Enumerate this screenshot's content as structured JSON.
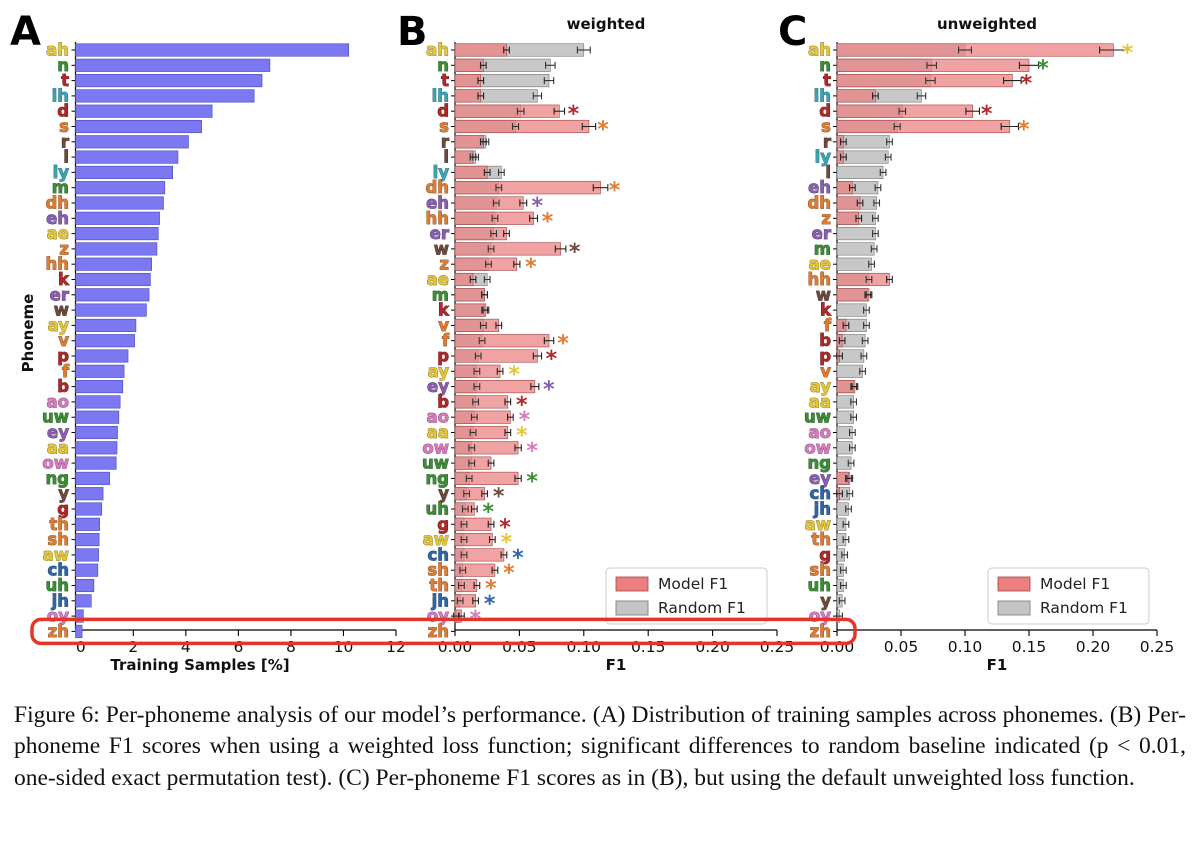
{
  "caption": "Figure 6: Per-phoneme analysis of our model’s performance. (A) Distribution of training samples across phonemes. (B) Per-phoneme F1 scores when using a weighted loss function; significant differences to random baseline indicated (p < 0.01, one-sided exact permutation test). (C) Per-phoneme F1 scores as in (B), but using the default unweighted loss function.",
  "colors": {
    "vowel_yellow": "#e5c638",
    "green": "#3c8d35",
    "red": "#b0282a",
    "teal": "#3aa6b5",
    "brown": "#6e4a3e",
    "orange": "#e07c32",
    "purple": "#8a5fb0",
    "pink": "#d87ac0",
    "blue": "#2f66a8",
    "blue_bar": "#7b78f2",
    "model_bar": "#ec8080",
    "random_bar": "#c5c5c5",
    "highlight": "#e5352b"
  },
  "chart_data": [
    {
      "type": "bar",
      "panel": "A",
      "orientation": "horizontal",
      "title": "",
      "xlabel": "Training Samples [%]",
      "ylabel": "Phoneme",
      "xlim": [
        -0.2,
        12
      ],
      "xticks": [
        "0",
        "2",
        "4",
        "6",
        "8",
        "10",
        "12"
      ],
      "categories": [
        "ah",
        "n",
        "t",
        "ih",
        "d",
        "s",
        "r",
        "l",
        "iy",
        "m",
        "dh",
        "eh",
        "ae",
        "z",
        "hh",
        "k",
        "er",
        "w",
        "ay",
        "v",
        "p",
        "f",
        "b",
        "ao",
        "uw",
        "ey",
        "aa",
        "ow",
        "ng",
        "y",
        "g",
        "th",
        "sh",
        "aw",
        "ch",
        "uh",
        "jh",
        "oy",
        "zh"
      ],
      "category_colors": [
        "vowel_yellow",
        "green",
        "red",
        "teal",
        "red",
        "orange",
        "brown",
        "brown",
        "teal",
        "green",
        "orange",
        "purple",
        "vowel_yellow",
        "orange",
        "orange",
        "red",
        "purple",
        "brown",
        "vowel_yellow",
        "orange",
        "red",
        "orange",
        "red",
        "pink",
        "green",
        "purple",
        "vowel_yellow",
        "pink",
        "green",
        "brown",
        "red",
        "orange",
        "orange",
        "vowel_yellow",
        "blue",
        "green",
        "blue",
        "pink",
        "orange"
      ],
      "values": [
        10.2,
        7.2,
        6.9,
        6.6,
        5.0,
        4.6,
        4.1,
        3.7,
        3.5,
        3.2,
        3.15,
        3.0,
        2.95,
        2.9,
        2.7,
        2.65,
        2.6,
        2.5,
        2.1,
        2.05,
        1.8,
        1.65,
        1.6,
        1.5,
        1.45,
        1.4,
        1.38,
        1.35,
        1.1,
        0.85,
        0.8,
        0.72,
        0.7,
        0.68,
        0.65,
        0.5,
        0.4,
        0.1,
        0.05
      ]
    },
    {
      "type": "bar",
      "panel": "B",
      "orientation": "horizontal",
      "title": "weighted",
      "xlabel": "F1",
      "xlim": [
        0,
        0.25
      ],
      "xticks": [
        "0.00",
        "0.05",
        "0.10",
        "0.15",
        "0.20",
        "0.25"
      ],
      "categories": [
        "ah",
        "n",
        "t",
        "ih",
        "d",
        "s",
        "r",
        "l",
        "iy",
        "dh",
        "eh",
        "hh",
        "er",
        "w",
        "z",
        "ae",
        "m",
        "k",
        "v",
        "f",
        "p",
        "ay",
        "ey",
        "b",
        "ao",
        "aa",
        "ow",
        "uw",
        "ng",
        "y",
        "uh",
        "g",
        "aw",
        "ch",
        "sh",
        "th",
        "jh",
        "oy",
        "zh"
      ],
      "category_colors": [
        "vowel_yellow",
        "green",
        "red",
        "teal",
        "red",
        "orange",
        "brown",
        "brown",
        "teal",
        "orange",
        "purple",
        "orange",
        "purple",
        "brown",
        "orange",
        "vowel_yellow",
        "green",
        "red",
        "orange",
        "orange",
        "red",
        "vowel_yellow",
        "purple",
        "red",
        "pink",
        "vowel_yellow",
        "pink",
        "green",
        "green",
        "brown",
        "green",
        "red",
        "vowel_yellow",
        "blue",
        "orange",
        "orange",
        "blue",
        "pink",
        "orange"
      ],
      "series": [
        {
          "name": "Model F1",
          "values": [
            0.04,
            0.022,
            0.02,
            0.02,
            0.081,
            0.104,
            0.022,
            0.014,
            0.025,
            0.113,
            0.053,
            0.061,
            0.04,
            0.082,
            0.048,
            0.014,
            0.023,
            0.024,
            0.034,
            0.073,
            0.064,
            0.035,
            0.062,
            0.041,
            0.043,
            0.041,
            0.049,
            0.028,
            0.049,
            0.023,
            0.015,
            0.028,
            0.029,
            0.038,
            0.031,
            0.017,
            0.016,
            0.005,
            0.0
          ]
        },
        {
          "name": "Random F1",
          "values": [
            0.1,
            0.074,
            0.073,
            0.064,
            0.051,
            0.047,
            0.024,
            0.016,
            0.036,
            0.034,
            0.032,
            0.031,
            0.03,
            0.028,
            0.026,
            0.025,
            0.023,
            0.023,
            0.022,
            0.021,
            0.018,
            0.017,
            0.017,
            0.016,
            0.015,
            0.014,
            0.013,
            0.013,
            0.011,
            0.009,
            0.008,
            0.007,
            0.007,
            0.007,
            0.006,
            0.005,
            0.004,
            0.001,
            0.0
          ]
        }
      ],
      "significant": [
        "d",
        "s",
        "dh",
        "eh",
        "hh",
        "w",
        "z",
        "f",
        "p",
        "ay",
        "ey",
        "b",
        "ao",
        "aa",
        "ow",
        "ng",
        "y",
        "uh",
        "g",
        "aw",
        "ch",
        "sh",
        "th",
        "jh",
        "oy"
      ],
      "significance_mark": "*",
      "legend": "lower-right"
    },
    {
      "type": "bar",
      "panel": "C",
      "orientation": "horizontal",
      "title": "unweighted",
      "xlabel": "F1",
      "xlim": [
        0,
        0.25
      ],
      "xticks": [
        "0.00",
        "0.05",
        "0.10",
        "0.15",
        "0.20",
        "0.25"
      ],
      "categories": [
        "ah",
        "n",
        "t",
        "ih",
        "d",
        "s",
        "r",
        "iy",
        "l",
        "eh",
        "dh",
        "z",
        "er",
        "m",
        "ae",
        "hh",
        "w",
        "k",
        "f",
        "b",
        "p",
        "v",
        "ay",
        "aa",
        "uw",
        "ao",
        "ow",
        "ng",
        "ey",
        "ch",
        "jh",
        "aw",
        "th",
        "g",
        "sh",
        "uh",
        "y",
        "oy",
        "zh"
      ],
      "category_colors": [
        "vowel_yellow",
        "green",
        "red",
        "teal",
        "red",
        "orange",
        "brown",
        "teal",
        "brown",
        "purple",
        "orange",
        "orange",
        "purple",
        "green",
        "vowel_yellow",
        "orange",
        "brown",
        "red",
        "orange",
        "red",
        "red",
        "orange",
        "vowel_yellow",
        "vowel_yellow",
        "green",
        "pink",
        "pink",
        "green",
        "purple",
        "blue",
        "blue",
        "vowel_yellow",
        "orange",
        "red",
        "orange",
        "green",
        "brown",
        "pink",
        "orange"
      ],
      "series": [
        {
          "name": "Model F1",
          "values": [
            0.216,
            0.15,
            0.137,
            0.03,
            0.106,
            0.135,
            0.005,
            0.005,
            0.0,
            0.012,
            0.018,
            0.017,
            0.0,
            0.0,
            0.0,
            0.041,
            0.025,
            0.0,
            0.007,
            0.004,
            0.002,
            0.0,
            0.014,
            0.0,
            0.0,
            0.0,
            0.0,
            0.0,
            0.009,
            0.002,
            0.0,
            0.0,
            0.0,
            0.0,
            0.0,
            0.0,
            0.0,
            0.0,
            0.0
          ]
        },
        {
          "name": "Random F1",
          "values": [
            0.1,
            0.074,
            0.073,
            0.066,
            0.051,
            0.047,
            0.041,
            0.04,
            0.036,
            0.032,
            0.031,
            0.03,
            0.03,
            0.029,
            0.027,
            0.025,
            0.024,
            0.023,
            0.023,
            0.022,
            0.021,
            0.02,
            0.013,
            0.013,
            0.013,
            0.012,
            0.012,
            0.011,
            0.01,
            0.01,
            0.009,
            0.007,
            0.007,
            0.006,
            0.005,
            0.005,
            0.004,
            0.002,
            0.0
          ]
        }
      ],
      "significant": [
        "ah",
        "n",
        "t",
        "d",
        "s"
      ],
      "significance_mark": "*",
      "legend": "lower-right"
    }
  ]
}
